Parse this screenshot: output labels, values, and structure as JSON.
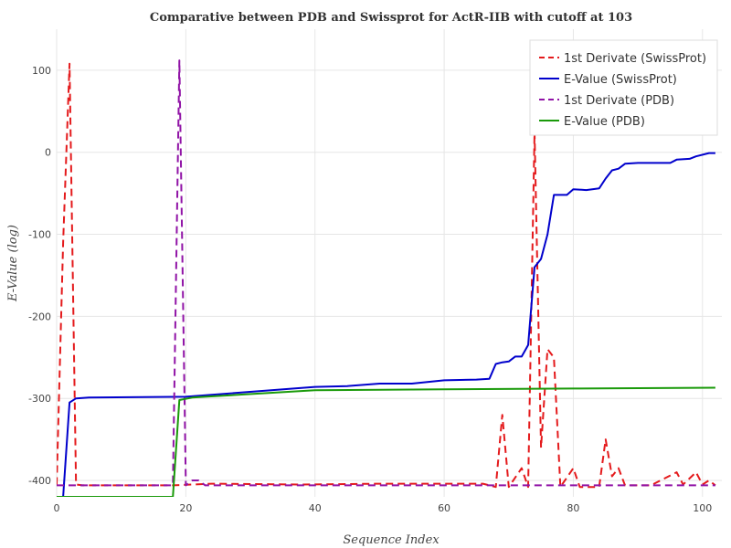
{
  "chart_data": {
    "type": "line",
    "title": "Comparative between PDB and Swissprot for ActR-IIB with cutoff at 103",
    "xlabel": "Sequence Index",
    "ylabel": "E-Value (log)",
    "xlim": [
      0,
      103
    ],
    "ylim": [
      -420,
      150
    ],
    "x_ticks": [
      0,
      20,
      40,
      60,
      80,
      100
    ],
    "x_tick_labels": [
      "0",
      "20",
      "40",
      "60",
      "80",
      "100"
    ],
    "y_ticks": [
      100,
      0,
      -100,
      -200,
      -300,
      -400
    ],
    "y_tick_labels": [
      "100",
      "0",
      "-100",
      "-200",
      "-300",
      "-400"
    ],
    "grid": true,
    "legend_position": "top-right",
    "series": [
      {
        "name": "1st Derivate (SwissProt)",
        "color": "#e41a1c",
        "dash": true,
        "points": [
          [
            0,
            -405
          ],
          [
            1,
            -110
          ],
          [
            2,
            108
          ],
          [
            3,
            -405
          ],
          [
            4,
            -406
          ],
          [
            10,
            -406
          ],
          [
            18,
            -406
          ],
          [
            24,
            -404
          ],
          [
            38,
            -405
          ],
          [
            50,
            -404
          ],
          [
            57,
            -404
          ],
          [
            66,
            -404
          ],
          [
            68,
            -408
          ],
          [
            69,
            -320
          ],
          [
            70,
            -408
          ],
          [
            72,
            -385
          ],
          [
            73,
            -408
          ],
          [
            74,
            25
          ],
          [
            75,
            -360
          ],
          [
            76,
            -240
          ],
          [
            77,
            -250
          ],
          [
            78,
            -408
          ],
          [
            80,
            -385
          ],
          [
            81,
            -408
          ],
          [
            84,
            -408
          ],
          [
            85,
            -350
          ],
          [
            86,
            -395
          ],
          [
            87,
            -385
          ],
          [
            88,
            -406
          ],
          [
            92,
            -406
          ],
          [
            96,
            -390
          ],
          [
            97,
            -405
          ],
          [
            99,
            -390
          ],
          [
            100,
            -405
          ],
          [
            101,
            -400
          ],
          [
            102,
            -406
          ]
        ]
      },
      {
        "name": "E-Value (SwissProt)",
        "color": "#0000cc",
        "dash": false,
        "points": [
          [
            1,
            -420
          ],
          [
            2,
            -305
          ],
          [
            3,
            -300
          ],
          [
            5,
            -299
          ],
          [
            20,
            -298
          ],
          [
            40,
            -286
          ],
          [
            45,
            -285
          ],
          [
            50,
            -282
          ],
          [
            55,
            -282
          ],
          [
            60,
            -278
          ],
          [
            65,
            -277
          ],
          [
            67,
            -276
          ],
          [
            68,
            -258
          ],
          [
            69,
            -256
          ],
          [
            70,
            -255
          ],
          [
            71,
            -249
          ],
          [
            72,
            -249
          ],
          [
            73,
            -235
          ],
          [
            74,
            -140
          ],
          [
            75,
            -130
          ],
          [
            76,
            -100
          ],
          [
            77,
            -52
          ],
          [
            79,
            -52
          ],
          [
            80,
            -45
          ],
          [
            82,
            -46
          ],
          [
            84,
            -44
          ],
          [
            85,
            -32
          ],
          [
            86,
            -22
          ],
          [
            87,
            -20
          ],
          [
            88,
            -14
          ],
          [
            90,
            -13
          ],
          [
            95,
            -13
          ],
          [
            96,
            -9
          ],
          [
            98,
            -8
          ],
          [
            99,
            -5
          ],
          [
            101,
            -1
          ],
          [
            102,
            -1
          ]
        ]
      },
      {
        "name": "1st Derivate (PDB)",
        "color": "#9013a6",
        "dash": true,
        "points": [
          [
            0,
            -406
          ],
          [
            18,
            -406
          ],
          [
            19,
            112
          ],
          [
            20,
            -406
          ],
          [
            21,
            -400
          ],
          [
            22,
            -400
          ],
          [
            23,
            -406
          ],
          [
            102,
            -406
          ]
        ]
      },
      {
        "name": "E-Value (PDB)",
        "color": "#1a9a0a",
        "dash": false,
        "points": [
          [
            0,
            -420
          ],
          [
            18,
            -420
          ],
          [
            19,
            -302
          ],
          [
            21,
            -299
          ],
          [
            23,
            -298
          ],
          [
            40,
            -290
          ],
          [
            60,
            -289
          ],
          [
            80,
            -288
          ],
          [
            102,
            -287
          ]
        ]
      }
    ]
  }
}
